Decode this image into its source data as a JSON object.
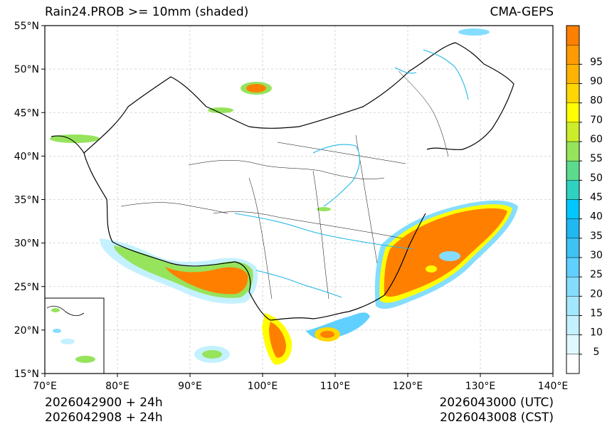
{
  "title": {
    "left": "Rain24.PROB >= 10mm (shaded)",
    "right": "CMA-GEPS"
  },
  "footer": {
    "init_utc": "2026042900 + 24h",
    "init_cst": "2026042908 + 24h",
    "valid_utc": "2026043000 (UTC)",
    "valid_cst": "2026043008 (CST)"
  },
  "map": {
    "lon_range": [
      70,
      140
    ],
    "lat_range": [
      15,
      55
    ],
    "lon_ticks": [
      "70°E",
      "80°E",
      "90°E",
      "100°E",
      "110°E",
      "120°E",
      "130°E",
      "140°E"
    ],
    "lat_ticks": [
      "15°N",
      "20°N",
      "25°N",
      "30°N",
      "35°N",
      "40°N",
      "45°N",
      "50°N",
      "55°N"
    ],
    "grid": true
  },
  "colorbar": {
    "labels": [
      "5",
      "10",
      "15",
      "20",
      "25",
      "30",
      "35",
      "40",
      "45",
      "50",
      "55",
      "60",
      "70",
      "80",
      "90",
      "95"
    ],
    "colors": [
      "#ffffff",
      "#e0f8ff",
      "#c4f1ff",
      "#a4e8ff",
      "#84ddff",
      "#5fd0ff",
      "#3ec3f5",
      "#1fb8f0",
      "#00c8ff",
      "#2fd2c0",
      "#5cdb8e",
      "#96e35c",
      "#ccee2a",
      "#ffff00",
      "#ffd700",
      "#ffb300",
      "#ff9a00",
      "#ff8000"
    ]
  },
  "colors": {
    "orange": "#ff8000",
    "yellow": "#ffff00",
    "green": "#7cdc5a",
    "cyan": "#4fd2ff",
    "light": "#c4f1ff",
    "river": "#1fb8e8"
  }
}
